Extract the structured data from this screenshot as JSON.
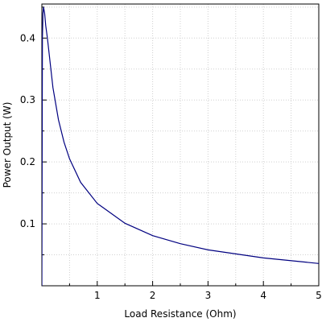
{
  "chart_data": {
    "type": "line",
    "title": "",
    "xlabel": "Load Resistance (Ohm)",
    "ylabel": "Power Output (W)",
    "xlim": [
      0,
      5
    ],
    "ylim": [
      0,
      0.455
    ],
    "grid": true,
    "x_ticks": [
      1,
      2,
      3,
      4,
      5
    ],
    "y_ticks": [
      0.1,
      0.2,
      0.3,
      0.4
    ],
    "x_tick_labels": [
      "1",
      "2",
      "3",
      "4",
      "5"
    ],
    "y_tick_labels": [
      "0.1",
      "0.2",
      "0.3",
      "0.4"
    ],
    "line_color": "#000080",
    "series": [
      {
        "x": [
          0.0,
          0.01,
          0.02,
          0.03,
          0.05,
          0.07,
          0.1,
          0.15,
          0.2,
          0.3,
          0.4,
          0.5,
          0.7,
          1.0,
          1.5,
          2.0,
          2.5,
          3.0,
          4.0,
          5.0
        ],
        "y": [
          0.0,
          0.4,
          0.44,
          0.45,
          0.44,
          0.42,
          0.4,
          0.36,
          0.32,
          0.268,
          0.232,
          0.205,
          0.167,
          0.133,
          0.101,
          0.081,
          0.068,
          0.058,
          0.045,
          0.036
        ]
      }
    ]
  }
}
